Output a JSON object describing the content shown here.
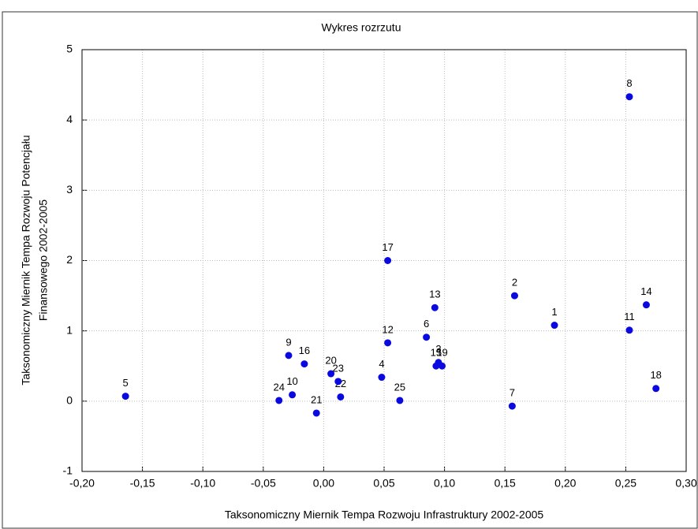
{
  "chart_data": {
    "type": "scatter",
    "title": "Wykres rozrzutu",
    "xlabel": "Taksonomiczny Miernik Tempa Rozwoju Infrastruktury 2002-2005",
    "ylabel": [
      "Taksonomiczny Miernik Tempa Rozwoju Potencjału",
      "Finansowego 2002-2005"
    ],
    "point_labels": [
      "1",
      "2",
      "3",
      "4",
      "5",
      "6",
      "7",
      "8",
      "9",
      "10",
      "11",
      "12",
      "13",
      "14",
      "15",
      "16",
      "17",
      "18",
      "19",
      "20",
      "21",
      "22",
      "23",
      "24",
      "25"
    ],
    "x": [
      0.191,
      0.158,
      0.095,
      0.048,
      -0.164,
      0.085,
      0.156,
      0.253,
      -0.029,
      -0.026,
      0.253,
      0.053,
      0.092,
      0.267,
      0.093,
      -0.016,
      0.053,
      0.275,
      0.098,
      0.006,
      -0.006,
      0.014,
      0.012,
      -0.037,
      0.063
    ],
    "y": [
      1.08,
      1.5,
      0.55,
      0.34,
      0.07,
      0.91,
      -0.07,
      4.33,
      0.65,
      0.09,
      1.01,
      0.83,
      1.33,
      1.37,
      0.5,
      0.53,
      2.0,
      0.18,
      0.5,
      0.39,
      -0.17,
      0.06,
      0.28,
      0.01,
      0.01
    ],
    "color": "#0a0ae0",
    "xlim": [
      -0.2,
      0.3
    ],
    "ylim": [
      -1,
      5
    ],
    "xticks": [
      {
        "value": -0.2,
        "label": "-0,20"
      },
      {
        "value": -0.15,
        "label": "-0,15"
      },
      {
        "value": -0.1,
        "label": "-0,10"
      },
      {
        "value": -0.05,
        "label": "-0,05"
      },
      {
        "value": 0,
        "label": "0,00"
      },
      {
        "value": 0.05,
        "label": "0,05"
      },
      {
        "value": 0.1,
        "label": "0,10"
      },
      {
        "value": 0.15,
        "label": "0,15"
      },
      {
        "value": 0.2,
        "label": "0,20"
      },
      {
        "value": 0.25,
        "label": "0,25"
      },
      {
        "value": 0.3,
        "label": "0,30"
      }
    ],
    "yticks": [
      -1,
      0,
      1,
      2,
      3,
      4,
      5
    ],
    "grid": true
  }
}
